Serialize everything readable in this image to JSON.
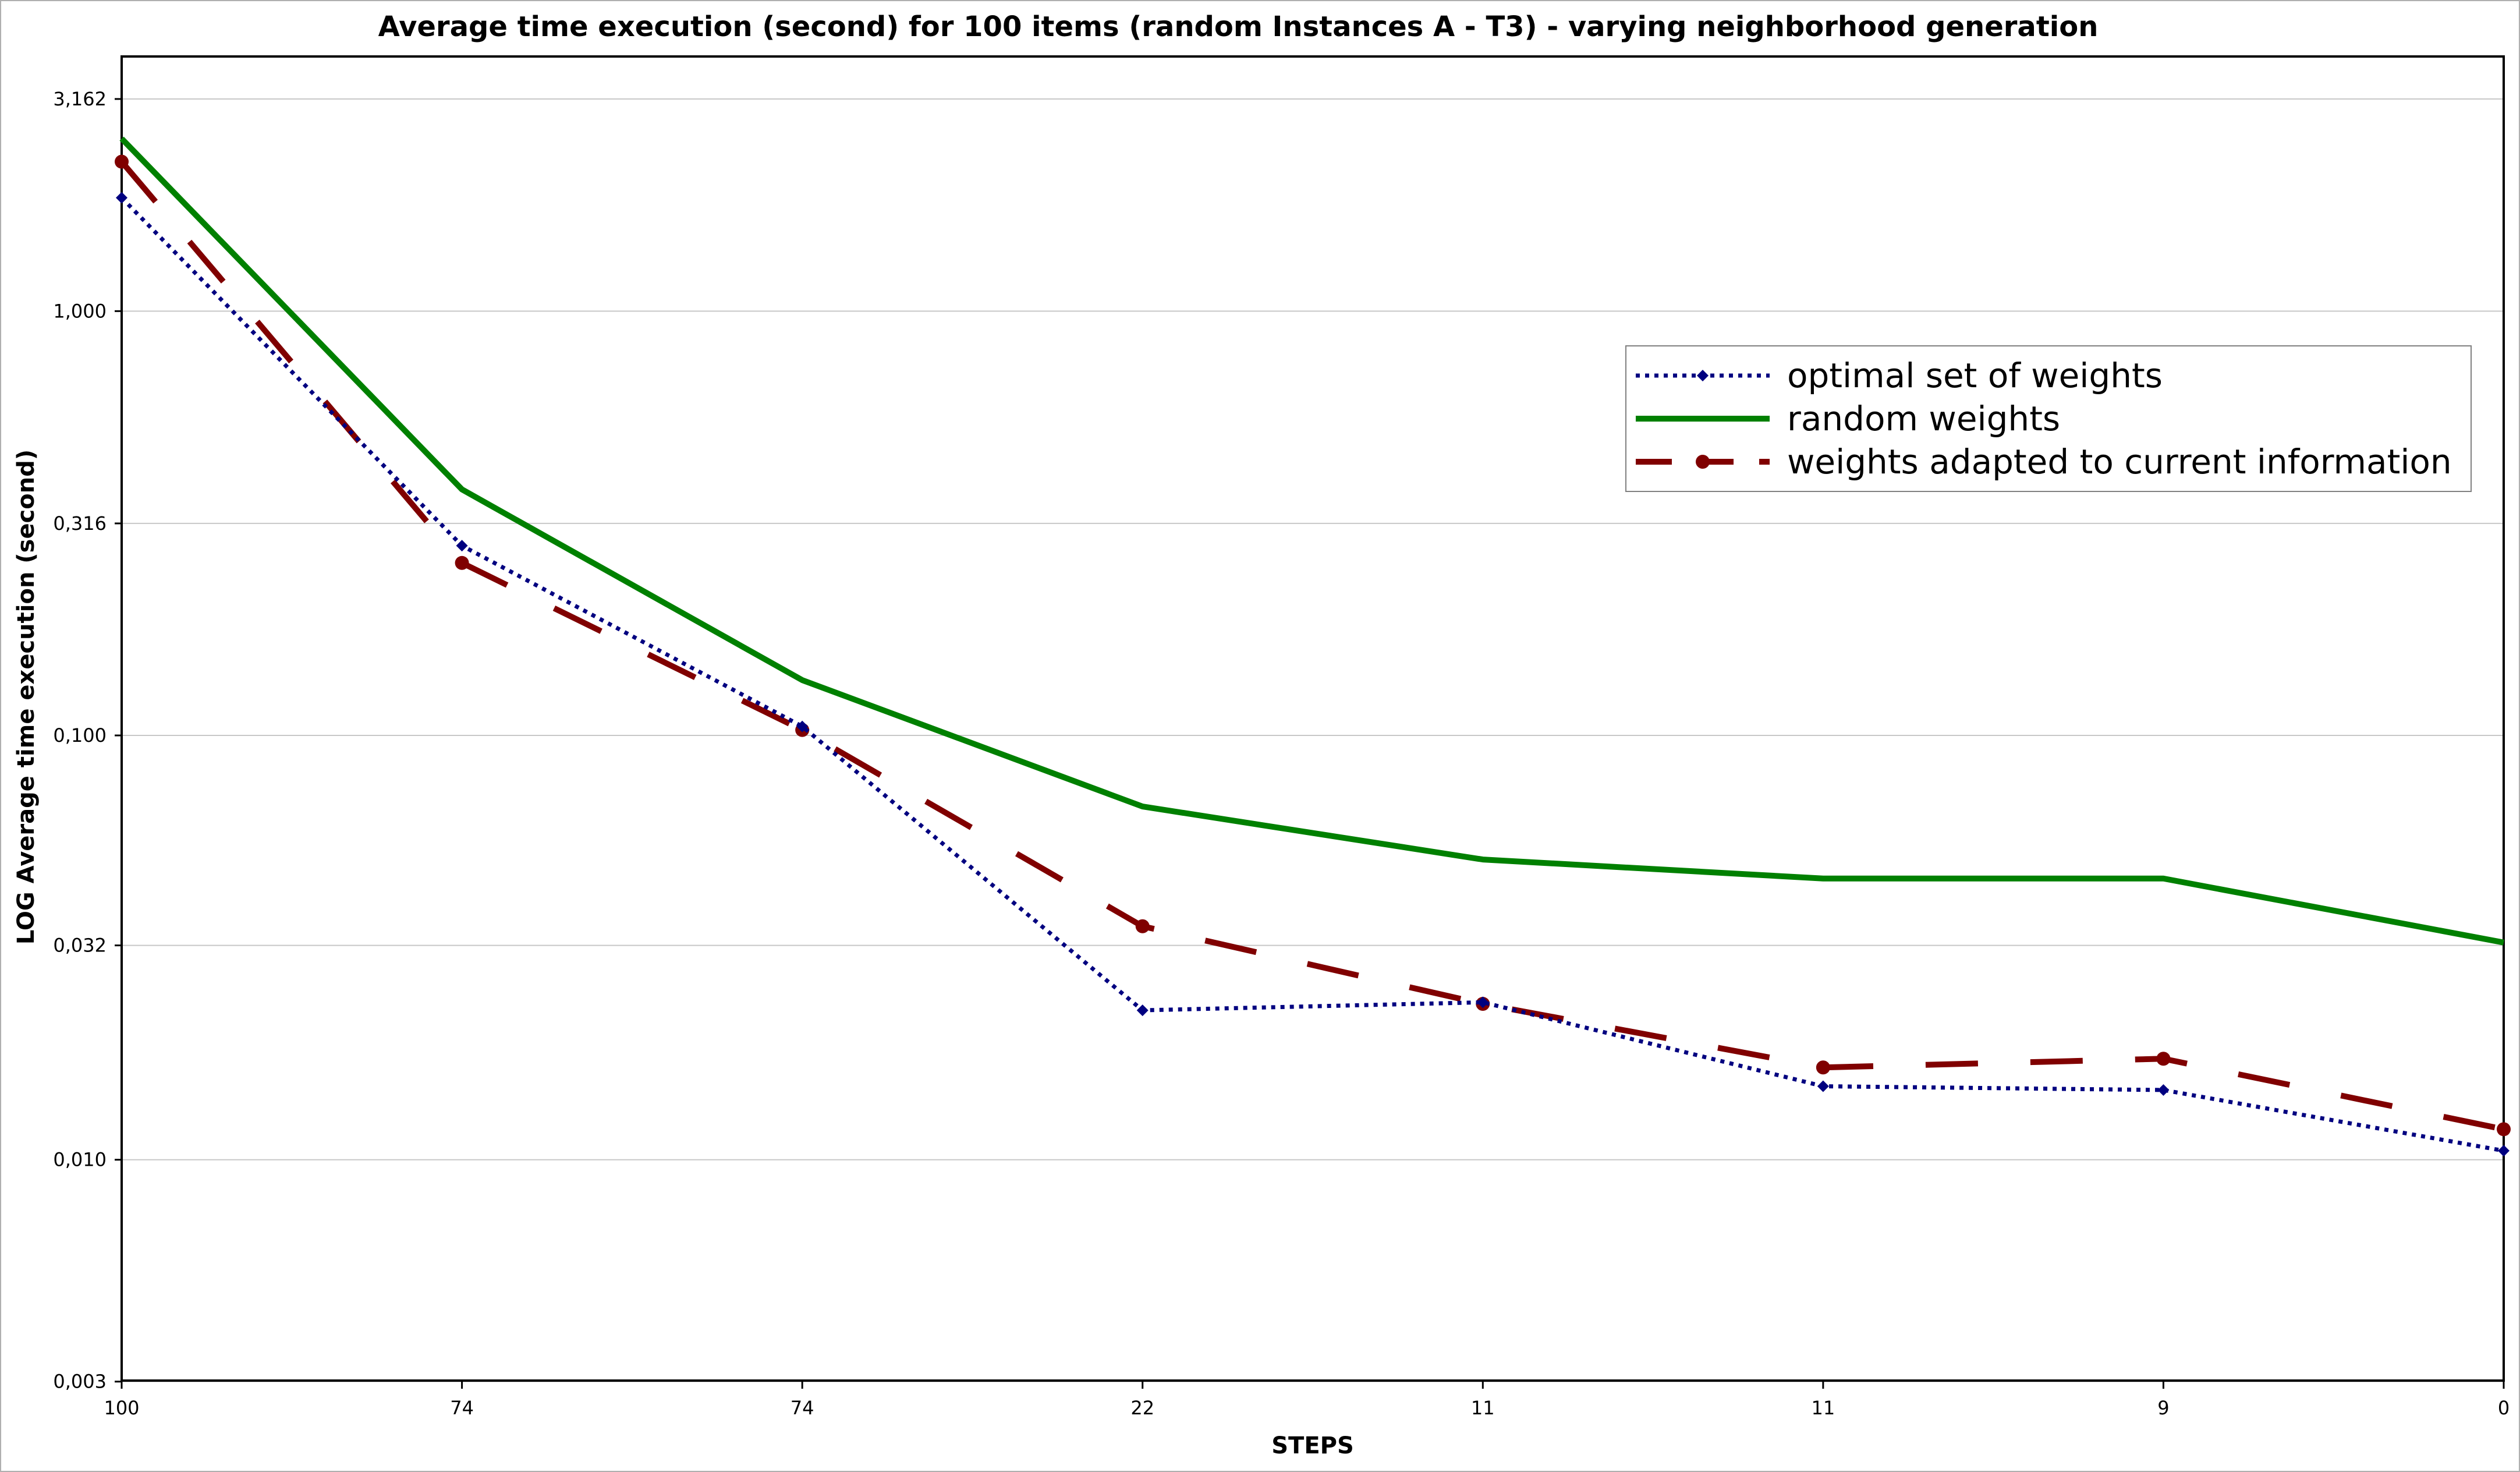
{
  "chart_data": {
    "type": "line",
    "title": "Average time execution (second) for 100 items (random Instances A - T3) - varying neighborhood generation",
    "xlabel": "STEPS",
    "ylabel": "LOG Average time execution (second)",
    "y_scale": "log",
    "ylim": [
      0.0028,
      4.0
    ],
    "grid": "horizontal",
    "legend_position": "top-right",
    "categories": [
      "100",
      "74",
      "74",
      "22",
      "11",
      "11",
      "9",
      "0"
    ],
    "y_ticks": [
      {
        "value": 3.162,
        "label": "3,162"
      },
      {
        "value": 1.0,
        "label": "1,000"
      },
      {
        "value": 0.316,
        "label": "0,316"
      },
      {
        "value": 0.1,
        "label": "0,100"
      },
      {
        "value": 0.032,
        "label": "0,032"
      },
      {
        "value": 0.01,
        "label": "0,010"
      },
      {
        "value": 0.003,
        "label": "0,003"
      }
    ],
    "series": [
      {
        "name": "optimal set of weights",
        "color": "#000080",
        "style": "dotted",
        "marker": "diamond",
        "values": [
          1.85,
          0.28,
          0.105,
          0.0225,
          0.0235,
          0.0149,
          0.0146,
          0.0105
        ]
      },
      {
        "name": "random weights",
        "color": "#008000",
        "style": "solid",
        "marker": "none",
        "values": [
          2.55,
          0.38,
          0.135,
          0.068,
          0.051,
          0.046,
          0.046,
          0.0325
        ]
      },
      {
        "name": "weights adapted to current information",
        "color": "#800000",
        "style": "dashed",
        "marker": "circle",
        "values": [
          2.25,
          0.255,
          0.103,
          0.0355,
          0.0233,
          0.0165,
          0.0173,
          0.0118
        ]
      }
    ]
  }
}
